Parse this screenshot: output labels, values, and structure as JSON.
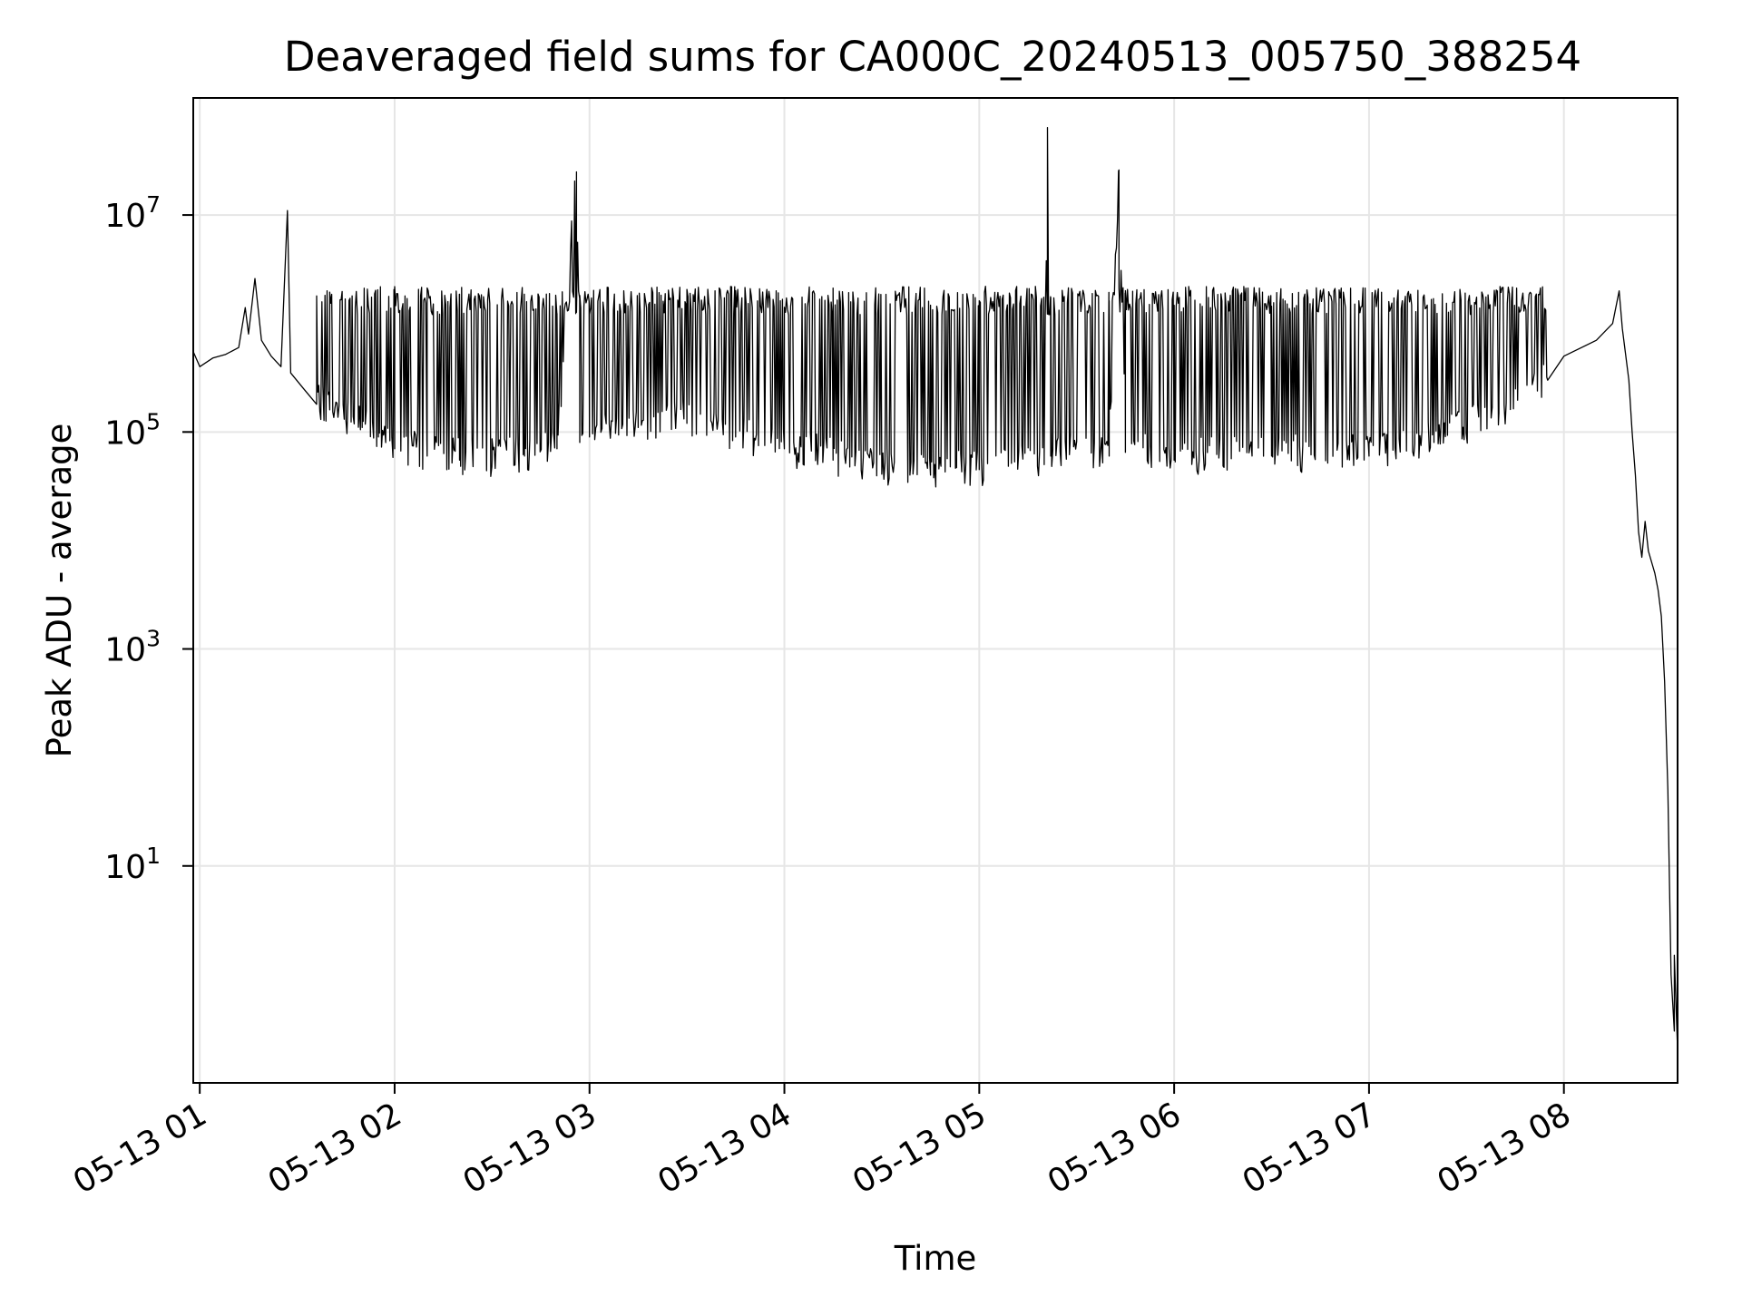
{
  "chart_data": {
    "type": "line",
    "title": "Deaveraged field sums for CA000C_20240513_005750_388254",
    "xlabel": "Time",
    "ylabel": "Peak ADU - average",
    "xscale": "time",
    "yscale": "log",
    "xlim": [
      "05-13 00:58",
      "05-13 08:35"
    ],
    "ylim": [
      0.1,
      120000000
    ],
    "grid": true,
    "line_color": "#000000",
    "x_ticks": [
      {
        "t": "05-13 01:00",
        "label": "05-13 01"
      },
      {
        "t": "05-13 02:00",
        "label": "05-13 02"
      },
      {
        "t": "05-13 03:00",
        "label": "05-13 03"
      },
      {
        "t": "05-13 04:00",
        "label": "05-13 04"
      },
      {
        "t": "05-13 05:00",
        "label": "05-13 05"
      },
      {
        "t": "05-13 06:00",
        "label": "05-13 06"
      },
      {
        "t": "05-13 07:00",
        "label": "05-13 07"
      },
      {
        "t": "05-13 08:00",
        "label": "05-13 08"
      }
    ],
    "y_ticks": [
      {
        "value": 10,
        "base": "10",
        "exp": "1"
      },
      {
        "value": 1000,
        "base": "10",
        "exp": "3"
      },
      {
        "value": 100000,
        "base": "10",
        "exp": "5"
      },
      {
        "value": 10000000,
        "base": "10",
        "exp": "7"
      }
    ],
    "series": [
      {
        "points": [
          [
            "05-13 00:58",
            550000
          ],
          [
            "05-13 01:00",
            400000
          ],
          [
            "05-13 01:04",
            480000
          ],
          [
            "05-13 01:08",
            520000
          ],
          [
            "05-13 01:12",
            600000
          ],
          [
            "05-13 01:14",
            1400000
          ],
          [
            "05-13 01:15",
            800000
          ],
          [
            "05-13 01:17",
            2600000
          ],
          [
            "05-13 01:19",
            700000
          ],
          [
            "05-13 01:22",
            500000
          ],
          [
            "05-13 01:25",
            400000
          ],
          [
            "05-13 01:27",
            11000000
          ],
          [
            "05-13 01:28",
            350000
          ],
          [
            "05-13 01:32",
            250000
          ],
          [
            "05-13 01:36",
            180000
          ],
          [
            "05-13 01:40",
            160000
          ],
          [
            "05-13 01:45",
            140000
          ],
          [
            "05-13 01:50",
            110000
          ],
          [
            "05-13 01:55",
            90000
          ],
          [
            "05-13 02:00",
            70000
          ],
          [
            "05-13 02:10",
            60000
          ],
          [
            "05-13 02:20",
            55000
          ],
          [
            "05-13 02:30",
            55000
          ],
          [
            "05-13 02:40",
            60000
          ],
          [
            "05-13 02:50",
            70000
          ],
          [
            "05-13 02:56",
            25000000
          ],
          [
            "05-13 02:57",
            80000
          ],
          [
            "05-13 03:00",
            90000
          ],
          [
            "05-13 03:15",
            110000
          ],
          [
            "05-13 03:30",
            120000
          ],
          [
            "05-13 03:45",
            90000
          ],
          [
            "05-13 04:00",
            70000
          ],
          [
            "05-13 04:15",
            55000
          ],
          [
            "05-13 04:30",
            45000
          ],
          [
            "05-13 04:45",
            40000
          ],
          [
            "05-13 05:00",
            45000
          ],
          [
            "05-13 05:20",
            50000
          ],
          [
            "05-13 05:21",
            48000000
          ],
          [
            "05-13 05:22",
            60000
          ],
          [
            "05-13 05:40",
            60000
          ],
          [
            "05-13 05:43",
            26000000
          ],
          [
            "05-13 05:45",
            65000
          ],
          [
            "05-13 06:00",
            55000
          ],
          [
            "05-13 06:30",
            60000
          ],
          [
            "05-13 07:00",
            60000
          ],
          [
            "05-13 07:20",
            80000
          ],
          [
            "05-13 07:40",
            150000
          ],
          [
            "05-13 07:55",
            300000
          ],
          [
            "05-13 08:00",
            500000
          ],
          [
            "05-13 08:10",
            700000
          ],
          [
            "05-13 08:15",
            1000000
          ],
          [
            "05-13 08:17",
            2000000
          ],
          [
            "05-13 08:18",
            900000
          ],
          [
            "05-13 08:20",
            300000
          ],
          [
            "05-13 08:21",
            100000
          ],
          [
            "05-13 08:22",
            40000
          ],
          [
            "05-13 08:23",
            12000
          ],
          [
            "05-13 08:24",
            7000
          ],
          [
            "05-13 08:25",
            15000
          ],
          [
            "05-13 08:26",
            8000
          ],
          [
            "05-13 08:28",
            5000
          ],
          [
            "05-13 08:29",
            3500
          ],
          [
            "05-13 08:30",
            2000
          ],
          [
            "05-13 08:31",
            500
          ],
          [
            "05-13 08:32",
            50
          ],
          [
            "05-13 08:33",
            1
          ],
          [
            "05-13 08:34",
            0.3
          ],
          [
            "05-13 08:34",
            1.5
          ],
          [
            "05-13 08:35",
            0.2
          ]
        ],
        "oscillation_band": {
          "from": "05-13 01:35",
          "to": "05-13 07:58",
          "upper": 2000000,
          "lower_follows_points": true
        }
      }
    ]
  }
}
